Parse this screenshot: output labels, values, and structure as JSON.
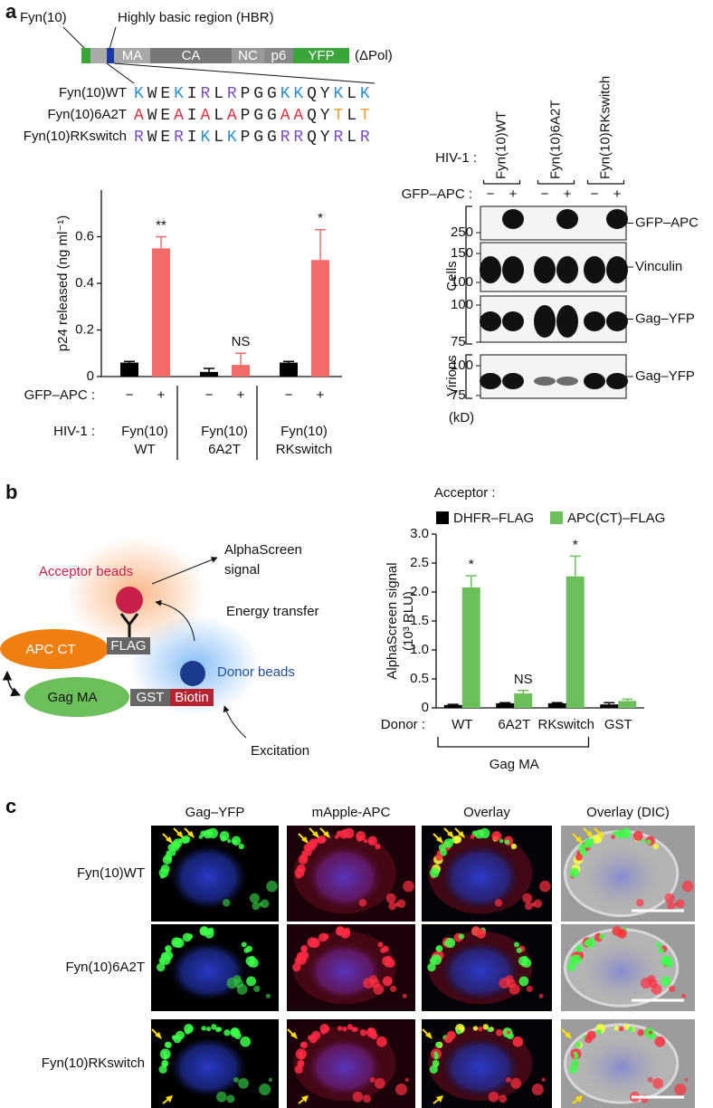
{
  "panel_labels": [
    "a",
    "b",
    "c"
  ],
  "construct": {
    "fyn_label": "Fyn(10)",
    "hbr_label": "Highly basic region (HBR)",
    "domains": [
      "MA",
      "CA",
      "NC",
      "p6",
      "YFP"
    ],
    "suffix": "(ΔPol)"
  },
  "sequences": {
    "residue_colors": {
      "K": "#2f8fd0",
      "R": "#7a4fc4",
      "A": "#e0303f",
      "T": "#eaa030"
    },
    "rows": [
      {
        "label": "Fyn(10)WT",
        "sequence": "KWEKIRLRPGGKKQYKLK"
      },
      {
        "label": "Fyn(10)6A2T",
        "sequence": "AWEAIALAPGGAAQYTLT"
      },
      {
        "label": "Fyn(10)RKswitch",
        "sequence": "RWERIKLKPGGRRQYRLR"
      }
    ]
  },
  "chart_data": [
    {
      "type": "bar",
      "y_label": "p24 released (ng ml⁻¹)",
      "ylim": [
        0,
        0.8
      ],
      "yticks": [
        0,
        0.2,
        0.4,
        0.6
      ],
      "apc_label": "GFP–APC :",
      "hiv_label": "HIV-1 :",
      "categories": [
        "−",
        "+",
        "−",
        "+",
        "−",
        "+"
      ],
      "values": [
        0.06,
        0.55,
        0.02,
        0.05,
        0.06,
        0.5
      ],
      "errors": [
        0.005,
        0.05,
        0.015,
        0.05,
        0.005,
        0.13
      ],
      "colors": [
        "#000000",
        "#f26b6b",
        "#000000",
        "#f26b6b",
        "#000000",
        "#f26b6b"
      ],
      "annotations": [
        null,
        "**",
        null,
        "NS",
        null,
        "*"
      ],
      "groups": [
        [
          "Fyn(10)",
          "WT"
        ],
        [
          "Fyn(10)",
          "6A2T"
        ],
        [
          "Fyn(10)",
          "RKswitch"
        ]
      ]
    },
    {
      "type": "grouped_bar",
      "legend_title": "Acceptor :",
      "y_label": [
        "AlphaScreen signal",
        "(10³ RLU)"
      ],
      "ylim": [
        0,
        3
      ],
      "yticks": [
        0,
        0.5,
        {
          "value": 1,
          "label": "1.0"
        },
        1.5,
        {
          "value": 2,
          "label": "2.0"
        },
        2.5,
        {
          "value": 3,
          "label": "3.0"
        }
      ],
      "x_label": "Donor :",
      "categories": [
        "WT",
        "6A2T",
        "RKswitch",
        "GST"
      ],
      "bracket_label": "Gag MA",
      "series": [
        {
          "name": "DHFR–FLAG",
          "color": "#000000",
          "values": [
            0.05,
            0.08,
            0.08,
            0.06
          ],
          "errors": [
            0.01,
            0.01,
            0.01,
            0.03
          ],
          "annotations": [
            null,
            null,
            null,
            null
          ]
        },
        {
          "name": "APC(CT)–FLAG",
          "color": "#6cbf5a",
          "values": [
            2.08,
            0.25,
            2.27,
            0.12
          ],
          "errors": [
            0.2,
            0.05,
            0.35,
            0.03
          ],
          "annotations": [
            "*",
            "NS",
            "*",
            null
          ]
        }
      ]
    }
  ],
  "western": {
    "hiv_label": "HIV-1 :",
    "apc_label": "GFP–APC :",
    "lanes": [
      "Fyn(10)WT",
      "Fyn(10)6A2T",
      "Fyn(10)RKswitch"
    ],
    "signs": [
      "−",
      "+",
      "−",
      "+",
      "−",
      "+"
    ],
    "blots": [
      {
        "protein": "GFP–APC",
        "markers": [
          250
        ]
      },
      {
        "protein": "Vinculin",
        "markers": [
          150,
          100
        ]
      },
      {
        "protein": "Gag–YFP",
        "markers": [
          100,
          75
        ]
      },
      {
        "protein": "Gag–YFP",
        "markers": [
          100,
          75
        ]
      }
    ],
    "cells_label": "Cells",
    "virions_label": "Virions",
    "unit": "(kD)"
  },
  "alphascreen_diagram": {
    "acceptor": "Acceptor beads",
    "signal": [
      "AlphaScreen",
      "signal"
    ],
    "energy": "Energy transfer",
    "apc": "APC CT",
    "flag": "FLAG",
    "donor": "Donor beads",
    "gag": "Gag MA",
    "gst": "GST",
    "biotin": "Biotin",
    "excitation": "Excitation"
  },
  "microscopy": {
    "columns": [
      "Gag–YFP",
      "mApple-APC",
      "Overlay",
      "Overlay (DIC)"
    ],
    "rows": [
      "Fyn(10)WT",
      "Fyn(10)6A2T",
      "Fyn(10)RKswitch"
    ]
  }
}
